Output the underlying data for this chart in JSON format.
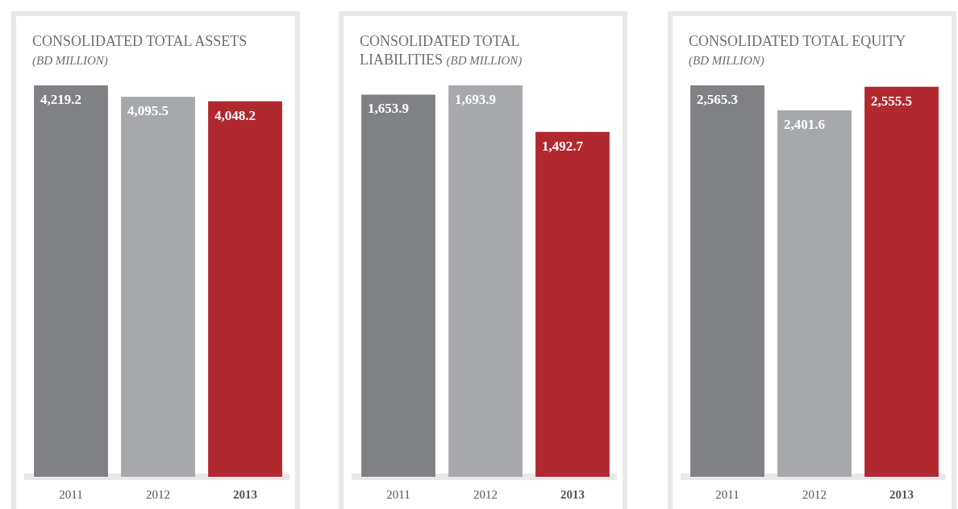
{
  "chart_data": [
    {
      "type": "bar",
      "title": "CONSOLIDATED TOTAL ASSETS",
      "subtitle": "(BD MILLION)",
      "categories": [
        "2011",
        "2012",
        "2013"
      ],
      "values": [
        4219.2,
        4095.5,
        4048.2
      ],
      "colors": [
        "#808185",
        "#a7a8ac",
        "#b1282e"
      ],
      "value_labels": [
        "4,219.2",
        "4,095.5",
        "4,048.2"
      ]
    },
    {
      "type": "bar",
      "title": "CONSOLIDATED TOTAL LIABILITIES",
      "subtitle": "(BD MILLION)",
      "categories": [
        "2011",
        "2012",
        "2013"
      ],
      "values": [
        1653.9,
        1693.9,
        1492.7
      ],
      "colors": [
        "#808185",
        "#a7a8ac",
        "#b1282e"
      ],
      "value_labels": [
        "1,653.9",
        "1,693.9",
        "1,492.7"
      ]
    },
    {
      "type": "bar",
      "title": "CONSOLIDATED TOTAL EQUITY",
      "subtitle": "(BD MILLION)",
      "categories": [
        "2011",
        "2012",
        "2013"
      ],
      "values": [
        2565.3,
        2401.6,
        2555.5
      ],
      "colors": [
        "#808185",
        "#a7a8ac",
        "#b1282e"
      ],
      "value_labels": [
        "2,565.3",
        "2,401.6",
        "2,555.5"
      ]
    }
  ]
}
